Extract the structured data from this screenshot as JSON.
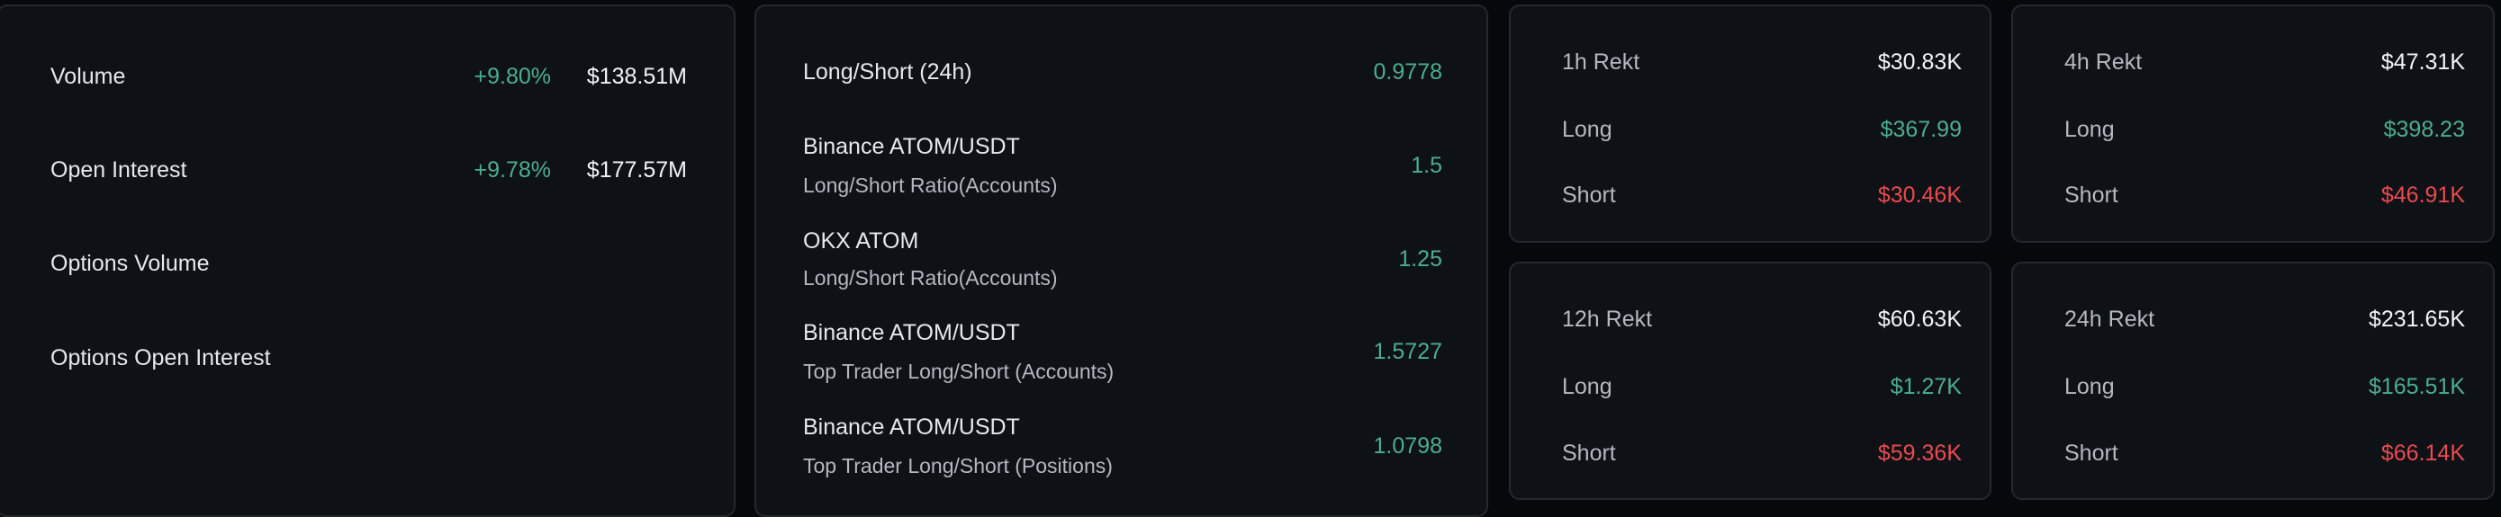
{
  "overview": {
    "rows": [
      {
        "label": "Volume",
        "change": "+9.80%",
        "value": "$138.51M"
      },
      {
        "label": "Open Interest",
        "change": "+9.78%",
        "value": "$177.57M"
      },
      {
        "label": "Options Volume"
      },
      {
        "label": "Options Open Interest"
      }
    ]
  },
  "ratios": {
    "headline": {
      "label": "Long/Short (24h)",
      "value": "0.9778"
    },
    "rows": [
      {
        "title": "Binance ATOM/USDT",
        "subtitle": "Long/Short Ratio(Accounts)",
        "value": "1.5"
      },
      {
        "title": "OKX ATOM",
        "subtitle": "Long/Short Ratio(Accounts)",
        "value": "1.25"
      },
      {
        "title": "Binance ATOM/USDT",
        "subtitle": "Top Trader Long/Short (Accounts)",
        "value": "1.5727"
      },
      {
        "title": "Binance ATOM/USDT",
        "subtitle": "Top Trader Long/Short (Positions)",
        "value": "1.0798"
      }
    ]
  },
  "rekt": [
    {
      "title": "1h Rekt",
      "total": "$30.83K",
      "long_label": "Long",
      "long": "$367.99",
      "short_label": "Short",
      "short": "$30.46K"
    },
    {
      "title": "4h Rekt",
      "total": "$47.31K",
      "long_label": "Long",
      "long": "$398.23",
      "short_label": "Short",
      "short": "$46.91K"
    },
    {
      "title": "12h Rekt",
      "total": "$60.63K",
      "long_label": "Long",
      "long": "$1.27K",
      "short_label": "Short",
      "short": "$59.36K"
    },
    {
      "title": "24h Rekt",
      "total": "$231.65K",
      "long_label": "Long",
      "long": "$165.51K",
      "short_label": "Short",
      "short": "$66.14K"
    }
  ],
  "colors": {
    "positive": "#4cae8e",
    "negative": "#ea4a4f",
    "background": "#06080c",
    "card": "#0e1116"
  }
}
